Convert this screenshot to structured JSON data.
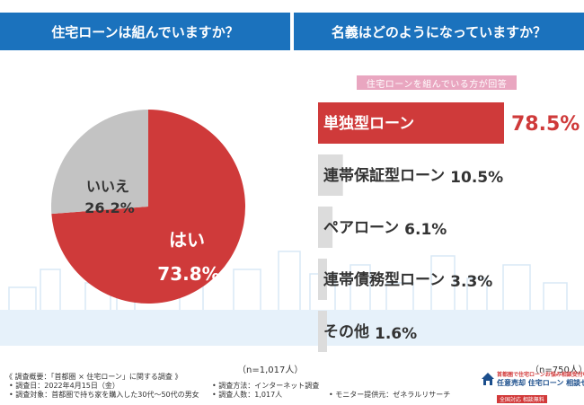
{
  "headers": {
    "left": "住宅ローンは組んでいますか？",
    "right": "名義はどのようになっていますか？"
  },
  "right_subtitle": "住宅ローンを組んでいる方が回答",
  "n_left": "（n=1,017人）",
  "n_right": "（n=750人）",
  "colors": {
    "red": "#cf3a3a",
    "gray": "#c3c3c3",
    "blue": "#1b72bd",
    "pink": "#e9a6c0"
  },
  "footer": {
    "title": "《 調査概要：「首都圏 × 住宅ローン」に関する調査 》",
    "lines_left": [
      "• 調査日：2022年4月15日（金）",
      "• 調査対象：首都圏で持ち家を購入した30代〜50代の男女"
    ],
    "lines_mid": [
      "• 調査方法：インターネット調査",
      "• 調査人数：1,017人"
    ],
    "line_right": "• モニター提供元：ゼネラルリサーチ"
  },
  "logo": {
    "tagline": "首都圏で住宅ローンお悩み相談受付中",
    "org": "任意売却 住宅ローン 相談センター",
    "bottom": "全国対応 相談無料"
  },
  "chart_data": [
    {
      "type": "pie",
      "title": "住宅ローンは組んでいますか？",
      "slices": [
        {
          "label": "はい",
          "value": 73.8,
          "value_text": "73.8%",
          "color": "#cf3a3a"
        },
        {
          "label": "いいえ",
          "value": 26.2,
          "value_text": "26.2%",
          "color": "#c3c3c3"
        }
      ],
      "n": "n=1,017人"
    },
    {
      "type": "bar",
      "orientation": "horizontal",
      "title": "名義はどのようになっていますか？",
      "categories": [
        "単独型ローン",
        "連帯保証型ローン",
        "ペアローン",
        "連帯債務型ローン",
        "その他"
      ],
      "values": [
        78.5,
        10.5,
        6.1,
        3.3,
        1.6
      ],
      "value_texts": [
        "78.5%",
        "10.5%",
        "6.1%",
        "3.3%",
        "1.6%"
      ],
      "xlim": [
        0,
        78.5
      ],
      "n": "n=750人"
    }
  ]
}
